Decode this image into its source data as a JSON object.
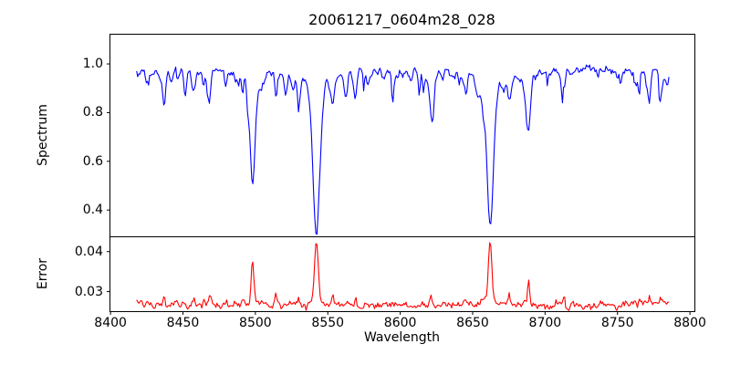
{
  "chart_data": {
    "type": "line",
    "title": "20061217_0604m28_028",
    "xlabel": "Wavelength",
    "xlim": [
      8399.6,
      8803.4
    ],
    "x_ticks": [
      8400,
      8450,
      8500,
      8550,
      8600,
      8650,
      8700,
      8750,
      8800
    ],
    "data_x_range": [
      8418,
      8785.5
    ],
    "sample_step": 0.75,
    "grid": false,
    "legend": "none",
    "panels": [
      {
        "name": "spectrum",
        "ylabel": "Spectrum",
        "ylim": [
          0.29,
          1.122
        ],
        "y_ticks": [
          0.4,
          0.6,
          0.8,
          1.0
        ],
        "y_tick_decimals": 1,
        "line_color": "#0000ff",
        "continuum": 0.975,
        "absorption_lines": [
          {
            "center": 8437.0,
            "depth": 0.14,
            "sigma": 1.1
          },
          {
            "center": 8468.4,
            "depth": 0.1,
            "sigma": 0.9
          },
          {
            "center": 8498.0,
            "depth": 0.47,
            "sigma": 1.7
          },
          {
            "center": 8514.1,
            "depth": 0.11,
            "sigma": 0.9
          },
          {
            "center": 8530.0,
            "depth": 0.1,
            "sigma": 0.9
          },
          {
            "center": 8542.1,
            "depth": 0.65,
            "sigma": 2.3
          },
          {
            "center": 8553.4,
            "depth": 0.13,
            "sigma": 0.9
          },
          {
            "center": 8569.2,
            "depth": 0.09,
            "sigma": 0.8
          },
          {
            "center": 8621.2,
            "depth": 0.09,
            "sigma": 0.8
          },
          {
            "center": 8662.1,
            "depth": 0.63,
            "sigma": 2.1
          },
          {
            "center": 8675.3,
            "depth": 0.12,
            "sigma": 0.9
          },
          {
            "center": 8688.6,
            "depth": 0.23,
            "sigma": 1.2
          },
          {
            "center": 8713.2,
            "depth": 0.08,
            "sigma": 0.8
          },
          {
            "center": 8772.0,
            "depth": 0.1,
            "sigma": 0.9
          }
        ],
        "noise": {
          "micro_sigma": 0.009,
          "random_dips": 80,
          "dip_depth_base": 0.02,
          "dip_depth_var": 0.1,
          "dip_sigma_min": 0.4,
          "dip_sigma_var": 0.9,
          "seed": 20061217
        }
      },
      {
        "name": "error",
        "ylabel": "Error",
        "ylim": [
          0.025,
          0.0437
        ],
        "y_ticks": [
          0.03,
          0.04
        ],
        "y_tick_decimals": 2,
        "line_color": "#ff0000",
        "baseline": 0.0265,
        "noise_micro_sigma": 0.00045,
        "line_peak_scale": 0.025,
        "line_peak_sigma_scale": 0.55,
        "dip_peak_scale": 0.006,
        "edge_bump": 0.0013
      }
    ]
  }
}
